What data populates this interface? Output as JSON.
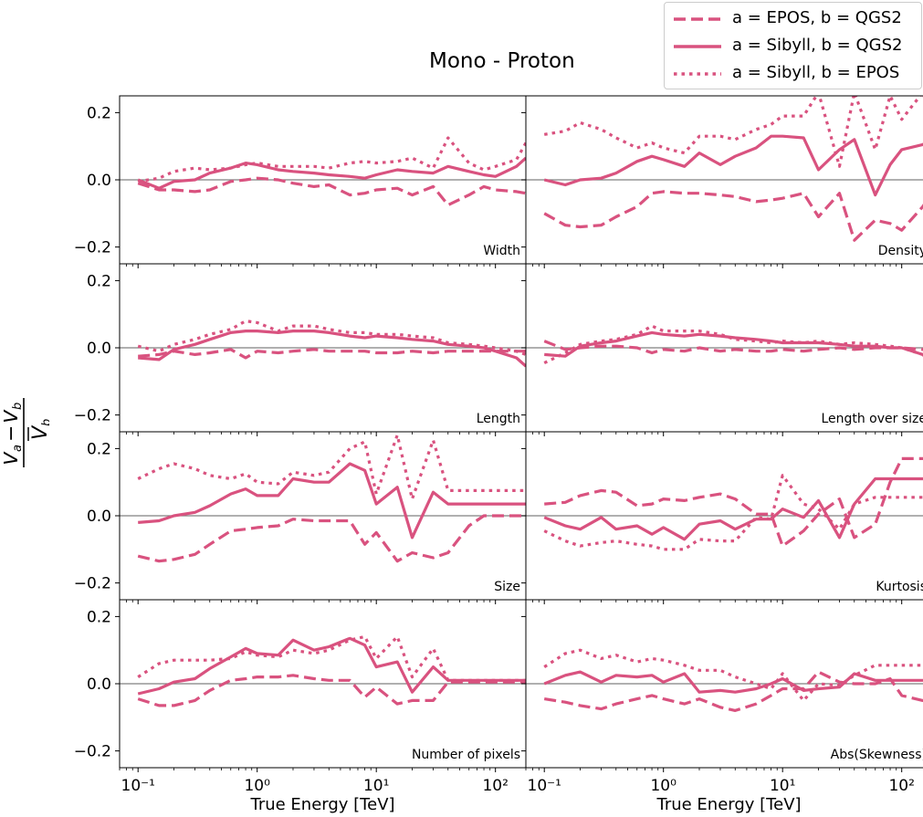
{
  "colors": {
    "series": "#d9527f",
    "zero_line": "#808080",
    "axes": "#000000"
  },
  "chart_data": {
    "type": "line",
    "title": "Mono - Proton",
    "xlabel": "True Energy [TeV]",
    "ylabel": "(V̄a − V̄b) / V̄b",
    "xscale": "log",
    "xlim": [
      0.07,
      180
    ],
    "ylim": [
      -0.25,
      0.25
    ],
    "xtick_labels": [
      "10⁻¹",
      "10⁰",
      "10¹",
      "10²"
    ],
    "ytick_labels": [
      "0.2",
      "0.0",
      "−0.2"
    ],
    "grid": false,
    "legend_position": "top-right",
    "legend": [
      {
        "label": "a = EPOS, b = QGS2",
        "style": "dashed"
      },
      {
        "label": "a = Sibyll, b = QGS2",
        "style": "solid"
      },
      {
        "label": "a = Sibyll, b = EPOS",
        "style": "dotted"
      }
    ],
    "x": [
      0.1,
      0.15,
      0.2,
      0.3,
      0.4,
      0.6,
      0.8,
      1.0,
      1.5,
      2,
      3,
      4,
      6,
      8,
      10,
      15,
      20,
      30,
      40,
      60,
      80,
      100,
      150,
      180
    ],
    "panels": [
      {
        "label": "Width",
        "series": [
          {
            "legend": 0,
            "values": [
              -0.01,
              -0.03,
              -0.03,
              -0.035,
              -0.03,
              -0.005,
              0.0,
              0.005,
              0.0,
              -0.01,
              -0.02,
              -0.015,
              -0.045,
              -0.04,
              -0.03,
              -0.025,
              -0.045,
              -0.02,
              -0.075,
              -0.045,
              -0.02,
              -0.03,
              -0.035,
              -0.04
            ]
          },
          {
            "legend": 1,
            "values": [
              0.0,
              -0.025,
              -0.005,
              0.0,
              0.02,
              0.035,
              0.05,
              0.045,
              0.03,
              0.025,
              0.02,
              0.015,
              0.01,
              0.005,
              0.015,
              0.03,
              0.025,
              0.02,
              0.04,
              0.025,
              0.015,
              0.01,
              0.04,
              0.065
            ]
          },
          {
            "legend": 2,
            "values": [
              -0.005,
              0.005,
              0.025,
              0.035,
              0.03,
              0.035,
              0.045,
              0.05,
              0.04,
              0.04,
              0.04,
              0.035,
              0.05,
              0.055,
              0.05,
              0.055,
              0.065,
              0.035,
              0.125,
              0.05,
              0.03,
              0.04,
              0.06,
              0.11
            ]
          }
        ]
      },
      {
        "label": "Density",
        "series": [
          {
            "legend": 0,
            "values": [
              -0.1,
              -0.135,
              -0.14,
              -0.135,
              -0.11,
              -0.08,
              -0.04,
              -0.035,
              -0.04,
              -0.04,
              -0.045,
              -0.05,
              -0.065,
              -0.06,
              -0.055,
              -0.04,
              -0.11,
              -0.04,
              -0.18,
              -0.12,
              -0.13,
              -0.15,
              -0.08,
              -0.04
            ]
          },
          {
            "legend": 1,
            "values": [
              0.0,
              -0.015,
              0.0,
              0.005,
              0.02,
              0.055,
              0.07,
              0.06,
              0.04,
              0.08,
              0.045,
              0.07,
              0.095,
              0.13,
              0.13,
              0.125,
              0.03,
              0.09,
              0.12,
              -0.045,
              0.045,
              0.09,
              0.105,
              0.12
            ]
          },
          {
            "legend": 2,
            "values": [
              0.135,
              0.145,
              0.17,
              0.15,
              0.125,
              0.095,
              0.11,
              0.095,
              0.08,
              0.13,
              0.13,
              0.12,
              0.15,
              0.165,
              0.19,
              0.19,
              0.26,
              0.04,
              0.26,
              0.09,
              0.25,
              0.18,
              0.26,
              0.18
            ]
          }
        ]
      },
      {
        "label": "Length",
        "series": [
          {
            "legend": 0,
            "values": [
              -0.025,
              -0.02,
              -0.01,
              -0.02,
              -0.015,
              -0.005,
              -0.03,
              -0.01,
              -0.015,
              -0.01,
              -0.005,
              -0.01,
              -0.01,
              -0.01,
              -0.015,
              -0.015,
              -0.01,
              -0.015,
              -0.01,
              -0.01,
              -0.01,
              -0.01,
              -0.01,
              -0.01
            ]
          },
          {
            "legend": 1,
            "values": [
              -0.03,
              -0.035,
              -0.005,
              0.01,
              0.025,
              0.045,
              0.05,
              0.05,
              0.045,
              0.05,
              0.05,
              0.045,
              0.035,
              0.03,
              0.035,
              0.03,
              0.025,
              0.02,
              0.01,
              0.005,
              0.0,
              -0.01,
              -0.03,
              -0.055
            ]
          },
          {
            "legend": 2,
            "values": [
              0.005,
              -0.01,
              0.01,
              0.025,
              0.04,
              0.055,
              0.08,
              0.075,
              0.05,
              0.065,
              0.065,
              0.055,
              0.045,
              0.045,
              0.04,
              0.04,
              0.035,
              0.03,
              0.015,
              0.01,
              0.005,
              0.0,
              -0.01,
              -0.02
            ]
          }
        ]
      },
      {
        "label": "Length over size",
        "series": [
          {
            "legend": 0,
            "values": [
              0.02,
              -0.005,
              0.0,
              0.005,
              0.005,
              0.0,
              -0.015,
              -0.005,
              -0.01,
              0.0,
              -0.01,
              -0.005,
              -0.01,
              -0.01,
              -0.005,
              -0.01,
              -0.005,
              0.0,
              -0.005,
              0.0,
              0.0,
              0.0,
              -0.005,
              -0.01
            ]
          },
          {
            "legend": 1,
            "values": [
              -0.02,
              -0.025,
              0.005,
              0.015,
              0.02,
              0.035,
              0.045,
              0.04,
              0.035,
              0.04,
              0.035,
              0.03,
              0.025,
              0.02,
              0.015,
              0.015,
              0.015,
              0.01,
              0.005,
              0.005,
              0.0,
              0.0,
              -0.02,
              -0.05
            ]
          },
          {
            "legend": 2,
            "values": [
              -0.045,
              -0.015,
              0.01,
              0.02,
              0.025,
              0.04,
              0.065,
              0.05,
              0.05,
              0.05,
              0.04,
              0.025,
              0.02,
              0.015,
              0.02,
              0.015,
              0.02,
              0.01,
              0.015,
              0.01,
              0.005,
              0.0,
              -0.02,
              -0.055
            ]
          }
        ]
      },
      {
        "label": "Size",
        "series": [
          {
            "legend": 0,
            "values": [
              -0.12,
              -0.135,
              -0.13,
              -0.115,
              -0.085,
              -0.045,
              -0.04,
              -0.035,
              -0.03,
              -0.01,
              -0.015,
              -0.015,
              -0.015,
              -0.085,
              -0.05,
              -0.135,
              -0.11,
              -0.125,
              -0.11,
              -0.03,
              0.0,
              0.0,
              0.0,
              0.0
            ]
          },
          {
            "legend": 1,
            "values": [
              -0.02,
              -0.015,
              0.0,
              0.01,
              0.03,
              0.065,
              0.08,
              0.06,
              0.06,
              0.11,
              0.1,
              0.1,
              0.155,
              0.135,
              0.035,
              0.085,
              -0.065,
              0.07,
              0.035,
              0.035,
              0.035,
              0.035,
              0.035,
              0.035
            ]
          },
          {
            "legend": 2,
            "values": [
              0.11,
              0.14,
              0.155,
              0.14,
              0.12,
              0.11,
              0.125,
              0.1,
              0.095,
              0.13,
              0.12,
              0.13,
              0.2,
              0.22,
              0.065,
              0.24,
              0.05,
              0.225,
              0.075,
              0.075,
              0.075,
              0.075,
              0.075,
              0.075
            ]
          }
        ]
      },
      {
        "label": "Kurtosis",
        "series": [
          {
            "legend": 0,
            "values": [
              0.035,
              0.04,
              0.06,
              0.075,
              0.07,
              0.03,
              0.035,
              0.05,
              0.045,
              0.055,
              0.065,
              0.05,
              0.005,
              0.005,
              -0.09,
              -0.045,
              0.005,
              0.05,
              -0.065,
              -0.025,
              0.1,
              0.17,
              0.17,
              0.17
            ]
          },
          {
            "legend": 1,
            "values": [
              -0.005,
              -0.03,
              -0.04,
              -0.005,
              -0.04,
              -0.03,
              -0.055,
              -0.035,
              -0.07,
              -0.025,
              -0.015,
              -0.04,
              -0.01,
              -0.01,
              0.02,
              -0.005,
              0.045,
              -0.065,
              0.035,
              0.11,
              0.11,
              0.11,
              0.11,
              0.11
            ]
          },
          {
            "legend": 2,
            "values": [
              -0.045,
              -0.075,
              -0.09,
              -0.08,
              -0.075,
              -0.085,
              -0.09,
              -0.1,
              -0.1,
              -0.07,
              -0.075,
              -0.075,
              -0.005,
              -0.01,
              0.12,
              0.035,
              0.02,
              -0.04,
              0.035,
              0.055,
              0.055,
              0.055,
              0.055,
              0.055
            ]
          }
        ]
      },
      {
        "label": "Number of pixels",
        "series": [
          {
            "legend": 0,
            "values": [
              -0.045,
              -0.065,
              -0.065,
              -0.05,
              -0.02,
              0.01,
              0.015,
              0.02,
              0.02,
              0.025,
              0.015,
              0.01,
              0.01,
              -0.04,
              -0.01,
              -0.06,
              -0.05,
              -0.05,
              0.005,
              0.005,
              0.005,
              0.005,
              0.005,
              0.005
            ]
          },
          {
            "legend": 1,
            "values": [
              -0.03,
              -0.015,
              0.005,
              0.015,
              0.045,
              0.08,
              0.105,
              0.09,
              0.085,
              0.13,
              0.1,
              0.11,
              0.135,
              0.115,
              0.05,
              0.065,
              -0.025,
              0.05,
              0.01,
              0.01,
              0.01,
              0.01,
              0.01,
              0.01
            ]
          },
          {
            "legend": 2,
            "values": [
              0.02,
              0.06,
              0.07,
              0.07,
              0.07,
              0.075,
              0.095,
              0.085,
              0.08,
              0.1,
              0.09,
              0.1,
              0.13,
              0.14,
              0.075,
              0.14,
              0.02,
              0.105,
              0.01,
              0.01,
              0.01,
              0.01,
              0.01,
              0.01
            ]
          }
        ]
      },
      {
        "label": "Abs(Skewness)",
        "series": [
          {
            "legend": 0,
            "values": [
              -0.045,
              -0.055,
              -0.065,
              -0.075,
              -0.06,
              -0.045,
              -0.035,
              -0.045,
              -0.06,
              -0.045,
              -0.07,
              -0.08,
              -0.06,
              -0.035,
              -0.015,
              -0.015,
              0.035,
              0.005,
              0.0,
              0.0,
              0.015,
              -0.035,
              -0.05,
              -0.05
            ]
          },
          {
            "legend": 1,
            "values": [
              0.0,
              0.025,
              0.035,
              0.005,
              0.025,
              0.02,
              0.025,
              0.005,
              0.03,
              -0.025,
              -0.02,
              -0.025,
              -0.015,
              0.0,
              0.015,
              -0.02,
              -0.015,
              -0.01,
              0.03,
              0.01,
              0.01,
              0.01,
              0.01,
              0.01
            ]
          },
          {
            "legend": 2,
            "values": [
              0.05,
              0.09,
              0.1,
              0.075,
              0.085,
              0.065,
              0.075,
              0.07,
              0.055,
              0.04,
              0.04,
              0.02,
              0.0,
              -0.015,
              0.03,
              -0.05,
              0.0,
              -0.005,
              0.025,
              0.055,
              0.055,
              0.055,
              0.055,
              0.055
            ]
          }
        ]
      }
    ]
  }
}
